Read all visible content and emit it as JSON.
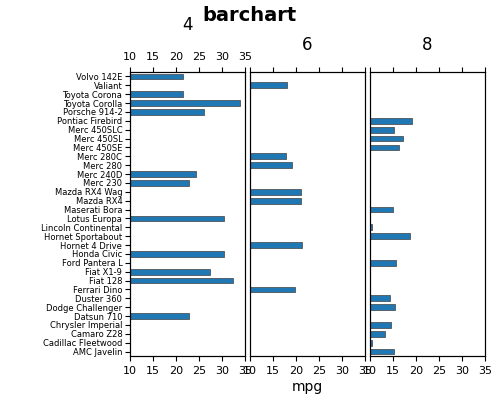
{
  "title": "barchart",
  "xlabel": "mpg",
  "chart_data": [
    {
      "type": "bar",
      "orientation": "horizontal",
      "title": "4",
      "categories": [
        "Volvo 142E",
        "Valiant",
        "Toyota Corona",
        "Toyota Corolla",
        "Porsche 914-2",
        "Pontiac Firebird",
        "Merc 450SLC",
        "Merc 450SL",
        "Merc 450SE",
        "Merc 280C",
        "Merc 280",
        "Merc 240D",
        "Merc 230",
        "Mazda RX4 Wag",
        "Mazda RX4",
        "Maserati Bora",
        "Lotus Europa",
        "Lincoln Continental",
        "Hornet Sportabout",
        "Hornet 4 Drive",
        "Honda Civic",
        "Ford Pantera L",
        "Fiat X1-9",
        "Fiat 128",
        "Ferrari Dino",
        "Duster 360",
        "Dodge Challenger",
        "Datsun 710",
        "Chrysler Imperial",
        "Camaro Z28",
        "Cadillac Fleetwood",
        "AMC Javelin"
      ],
      "values": [
        21.4,
        null,
        21.5,
        33.9,
        26.0,
        null,
        null,
        null,
        null,
        null,
        null,
        24.4,
        22.8,
        null,
        null,
        null,
        30.4,
        null,
        null,
        null,
        30.4,
        null,
        27.3,
        32.4,
        null,
        null,
        null,
        22.8,
        null,
        null,
        null,
        null
      ],
      "xlim": [
        10,
        35
      ],
      "xticks": [
        10,
        15,
        20,
        25,
        30,
        35
      ]
    },
    {
      "type": "bar",
      "orientation": "horizontal",
      "title": "6",
      "categories": [
        "Volvo 142E",
        "Valiant",
        "Toyota Corona",
        "Toyota Corolla",
        "Porsche 914-2",
        "Pontiac Firebird",
        "Merc 450SLC",
        "Merc 450SL",
        "Merc 450SE",
        "Merc 280C",
        "Merc 280",
        "Merc 240D",
        "Merc 230",
        "Mazda RX4 Wag",
        "Mazda RX4",
        "Maserati Bora",
        "Lotus Europa",
        "Lincoln Continental",
        "Hornet Sportabout",
        "Hornet 4 Drive",
        "Honda Civic",
        "Ford Pantera L",
        "Fiat X1-9",
        "Fiat 128",
        "Ferrari Dino",
        "Duster 360",
        "Dodge Challenger",
        "Datsun 710",
        "Chrysler Imperial",
        "Camaro Z28",
        "Cadillac Fleetwood",
        "AMC Javelin"
      ],
      "values": [
        null,
        18.1,
        null,
        null,
        null,
        null,
        null,
        null,
        null,
        17.8,
        19.2,
        null,
        null,
        21.0,
        21.0,
        null,
        null,
        null,
        null,
        21.4,
        null,
        null,
        null,
        null,
        19.7,
        null,
        null,
        null,
        null,
        null,
        null,
        null
      ],
      "xlim": [
        10,
        35
      ],
      "xticks": [
        10,
        15,
        20,
        25,
        30,
        35
      ],
      "tick_labels": "x"
    },
    {
      "type": "bar",
      "orientation": "horizontal",
      "title": "8",
      "categories": [
        "Volvo 142E",
        "Valiant",
        "Toyota Corona",
        "Toyota Corolla",
        "Porsche 914-2",
        "Pontiac Firebird",
        "Merc 450SLC",
        "Merc 450SL",
        "Merc 450SE",
        "Merc 280C",
        "Merc 280",
        "Merc 240D",
        "Merc 230",
        "Mazda RX4 Wag",
        "Mazda RX4",
        "Maserati Bora",
        "Lotus Europa",
        "Lincoln Continental",
        "Hornet Sportabout",
        "Hornet 4 Drive",
        "Honda Civic",
        "Ford Pantera L",
        "Fiat X1-9",
        "Fiat 128",
        "Ferrari Dino",
        "Duster 360",
        "Dodge Challenger",
        "Datsun 710",
        "Chrysler Imperial",
        "Camaro Z28",
        "Cadillac Fleetwood",
        "AMC Javelin"
      ],
      "values": [
        null,
        null,
        null,
        null,
        null,
        19.2,
        15.2,
        17.3,
        16.4,
        null,
        null,
        null,
        null,
        null,
        null,
        15.0,
        null,
        10.4,
        18.7,
        null,
        null,
        15.8,
        null,
        null,
        null,
        14.3,
        15.5,
        null,
        14.7,
        13.3,
        10.4,
        15.2
      ],
      "xlim": [
        10,
        35
      ],
      "xticks": [
        10,
        15,
        20,
        25,
        30,
        35
      ],
      "tick_labels": "x"
    }
  ]
}
